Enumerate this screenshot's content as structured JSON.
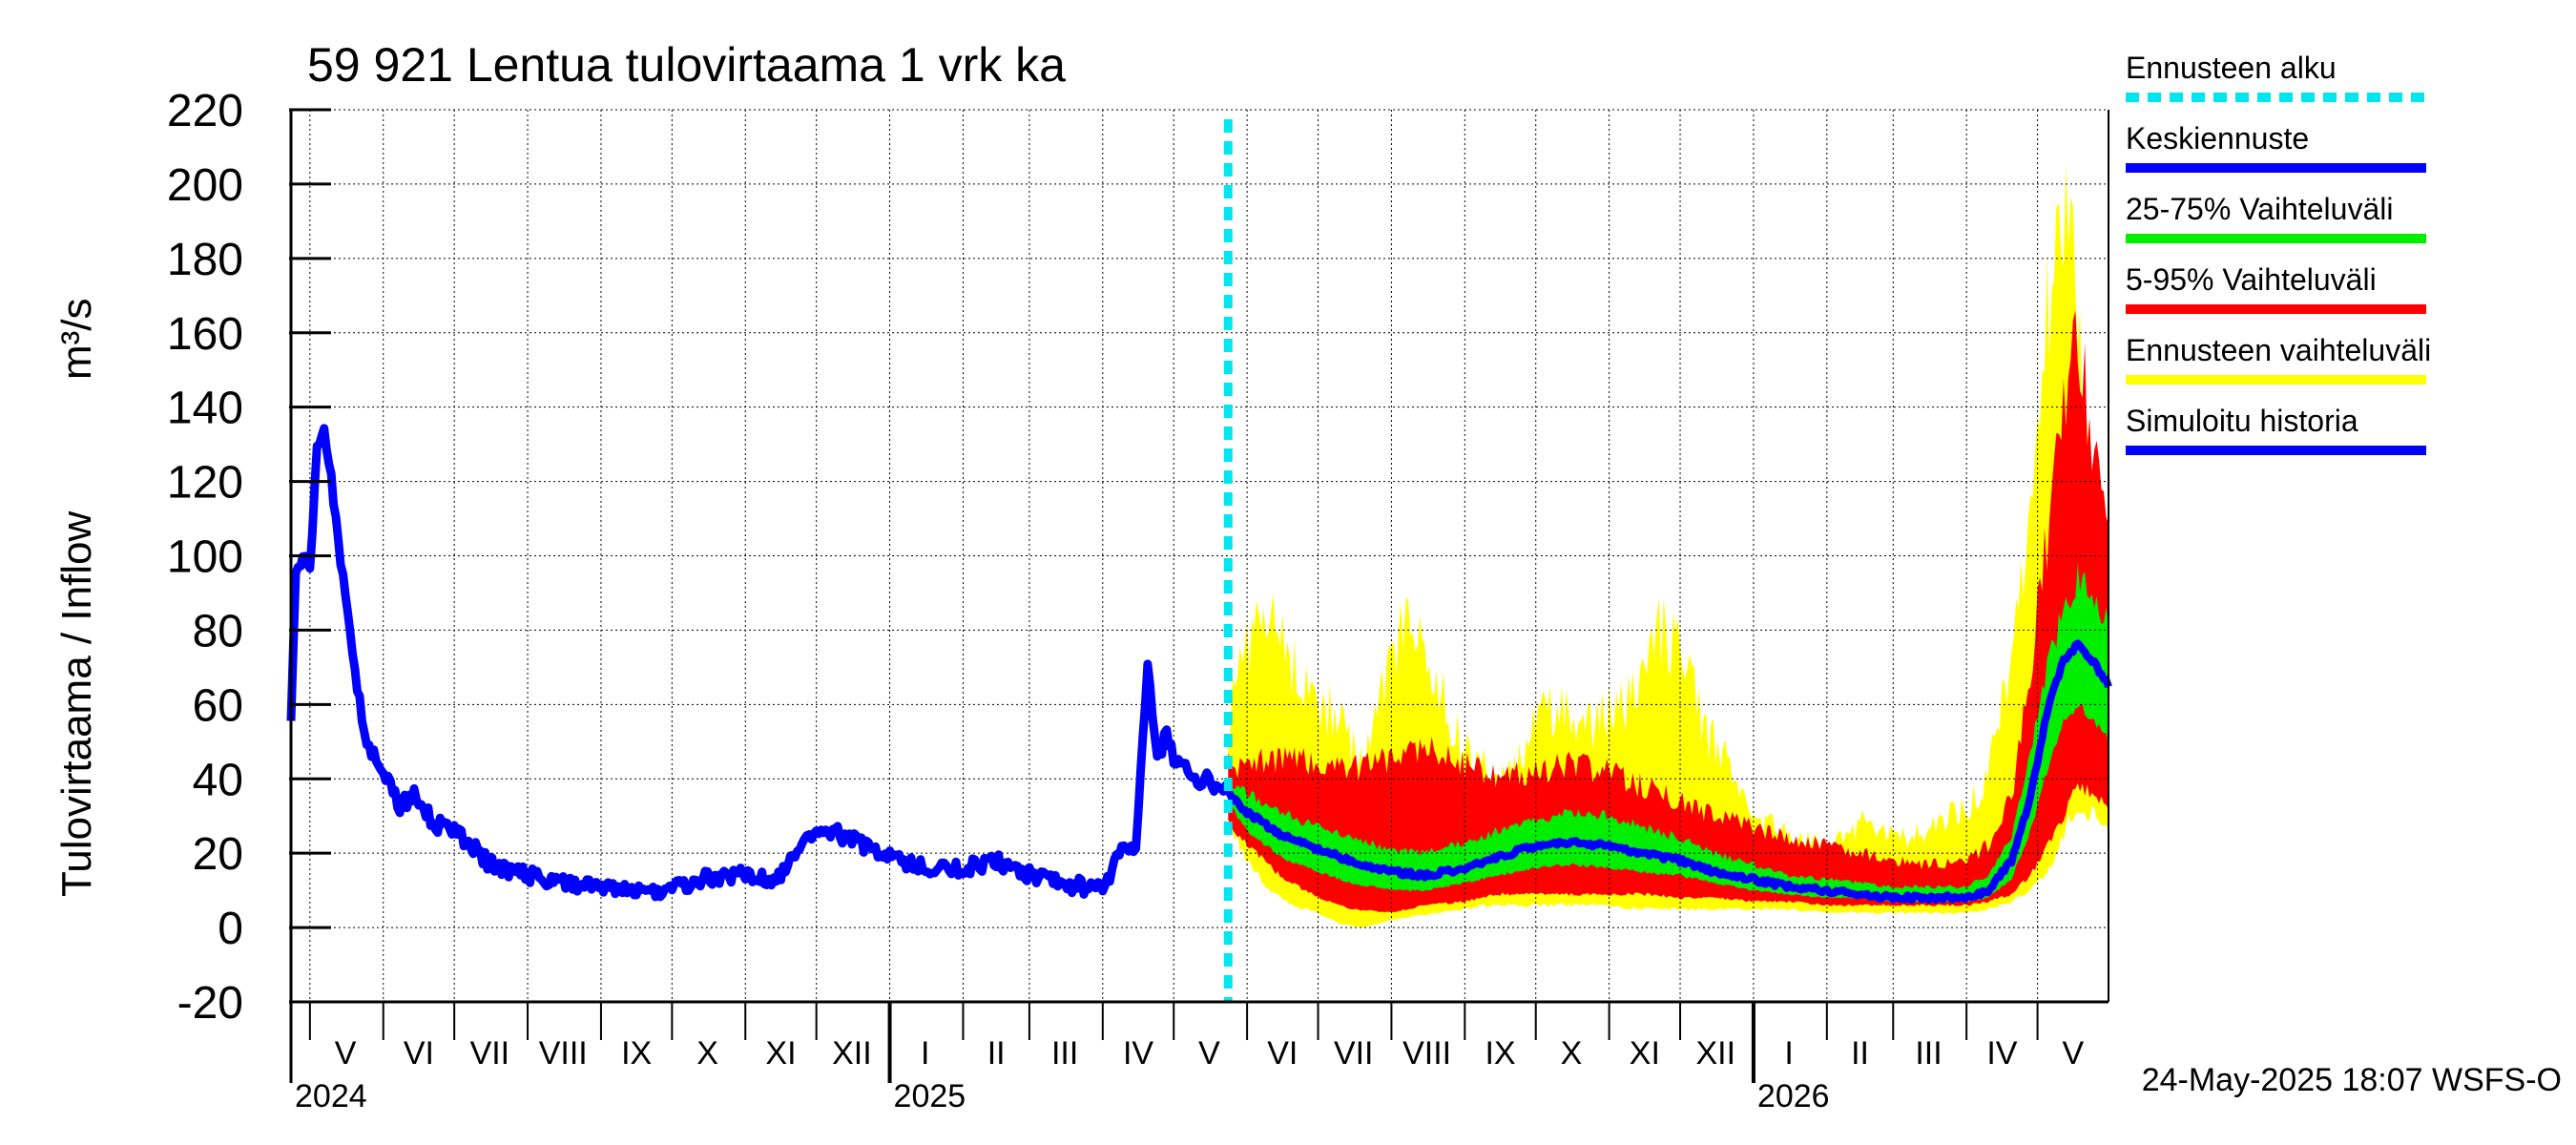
{
  "chart_data": {
    "type": "area",
    "title": "59 921 Lentua tulovirtaama 1 vrk ka",
    "ylabel": "Tulovirtaama / Inflow",
    "yunit": "m³/s",
    "ylim": [
      -20,
      220
    ],
    "yticks": [
      -20,
      0,
      20,
      40,
      60,
      80,
      100,
      120,
      140,
      160,
      180,
      200,
      220
    ],
    "grid": true,
    "x_range": [
      "2024-04-23",
      "2026-05-31"
    ],
    "forecast_start": "2025-05-24",
    "month_labels": [
      {
        "label": "V",
        "date": "2024-05-16"
      },
      {
        "label": "VI",
        "date": "2024-06-16"
      },
      {
        "label": "VII",
        "date": "2024-07-16"
      },
      {
        "label": "VIII",
        "date": "2024-08-16"
      },
      {
        "label": "IX",
        "date": "2024-09-16"
      },
      {
        "label": "X",
        "date": "2024-10-16"
      },
      {
        "label": "XI",
        "date": "2024-11-16"
      },
      {
        "label": "XII",
        "date": "2024-12-16"
      },
      {
        "label": "I",
        "date": "2025-01-16"
      },
      {
        "label": "II",
        "date": "2025-02-15"
      },
      {
        "label": "III",
        "date": "2025-03-16"
      },
      {
        "label": "IV",
        "date": "2025-04-16"
      },
      {
        "label": "V",
        "date": "2025-05-16"
      },
      {
        "label": "VI",
        "date": "2025-06-16"
      },
      {
        "label": "VII",
        "date": "2025-07-16"
      },
      {
        "label": "VIII",
        "date": "2025-08-16"
      },
      {
        "label": "IX",
        "date": "2025-09-16"
      },
      {
        "label": "X",
        "date": "2025-10-16"
      },
      {
        "label": "XI",
        "date": "2025-11-16"
      },
      {
        "label": "XII",
        "date": "2025-12-16"
      },
      {
        "label": "I",
        "date": "2026-01-16"
      },
      {
        "label": "II",
        "date": "2026-02-15"
      },
      {
        "label": "III",
        "date": "2026-03-16"
      },
      {
        "label": "IV",
        "date": "2026-04-16"
      },
      {
        "label": "V",
        "date": "2026-05-16"
      }
    ],
    "year_labels": [
      {
        "label": "2024",
        "date": "2024-04-23"
      },
      {
        "label": "2025",
        "date": "2025-01-01"
      },
      {
        "label": "2026",
        "date": "2026-01-01"
      }
    ],
    "legend": [
      {
        "label": "Ennusteen alku",
        "color": "#00e5ee",
        "style": "dashed"
      },
      {
        "label": "Keskiennuste",
        "color": "#0000ff",
        "style": "line"
      },
      {
        "label": "25-75% Vaihteluväli",
        "color": "#00ee00",
        "style": "line"
      },
      {
        "label": "5-95% Vaihteluväli",
        "color": "#ff0000",
        "style": "line"
      },
      {
        "label": "Ennusteen vaihteluväli",
        "color": "#ffff00",
        "style": "line"
      },
      {
        "label": "Simuloitu historia",
        "color": "#0000ff",
        "style": "line"
      }
    ],
    "footer": "24-May-2025 18:07 WSFS-O",
    "series": [
      {
        "name": "Simuloitu historia",
        "color": "#0000ff",
        "x": [
          "2024-04-23",
          "2024-04-25",
          "2024-04-28",
          "2024-05-01",
          "2024-05-04",
          "2024-05-07",
          "2024-05-10",
          "2024-05-13",
          "2024-05-16",
          "2024-05-20",
          "2024-05-25",
          "2024-06-01",
          "2024-06-08",
          "2024-06-15",
          "2024-06-22",
          "2024-07-01",
          "2024-07-08",
          "2024-07-16",
          "2024-07-24",
          "2024-08-01",
          "2024-08-15",
          "2024-09-01",
          "2024-09-15",
          "2024-10-01",
          "2024-10-15",
          "2024-11-01",
          "2024-11-15",
          "2024-12-01",
          "2024-12-15",
          "2025-01-01",
          "2025-01-15",
          "2025-02-01",
          "2025-02-15",
          "2025-03-01",
          "2025-03-15",
          "2025-04-01",
          "2025-04-08",
          "2025-04-15",
          "2025-04-20",
          "2025-04-24",
          "2025-04-28",
          "2025-05-01",
          "2025-05-05",
          "2025-05-10",
          "2025-05-15",
          "2025-05-20",
          "2025-05-24"
        ],
        "y": [
          57,
          95,
          100,
          96,
          130,
          136,
          120,
          105,
          88,
          68,
          50,
          42,
          33,
          36,
          28,
          26,
          22,
          17,
          15,
          14,
          12,
          11,
          9,
          11,
          13,
          14,
          13,
          27,
          24,
          19,
          16,
          16,
          18,
          14,
          12,
          10,
          20,
          22,
          70,
          45,
          52,
          46,
          43,
          40,
          40,
          38,
          36
        ]
      },
      {
        "name": "Keskiennuste",
        "color": "#0000ff",
        "x": [
          "2025-05-24",
          "2025-06-01",
          "2025-06-15",
          "2025-07-01",
          "2025-07-15",
          "2025-08-01",
          "2025-08-15",
          "2025-09-01",
          "2025-09-15",
          "2025-10-01",
          "2025-10-15",
          "2025-11-01",
          "2025-11-15",
          "2025-12-01",
          "2025-12-15",
          "2026-01-01",
          "2026-01-15",
          "2026-02-01",
          "2026-02-15",
          "2026-03-01",
          "2026-03-15",
          "2026-04-01",
          "2026-04-10",
          "2026-04-20",
          "2026-04-28",
          "2026-05-05",
          "2026-05-12",
          "2026-05-18",
          "2026-05-24",
          "2026-05-31"
        ],
        "y": [
          36,
          31,
          25,
          21,
          18,
          15,
          14,
          16,
          19,
          22,
          23,
          22,
          20,
          18,
          15,
          13,
          11,
          10,
          9,
          8,
          8,
          8,
          10,
          18,
          35,
          58,
          72,
          76,
          72,
          65
        ]
      }
    ],
    "bands": [
      {
        "name": "Ennusteen vaihteluväli",
        "color": "#ffff00",
        "x": [
          "2025-05-24",
          "2025-06-01",
          "2025-06-10",
          "2025-06-20",
          "2025-07-01",
          "2025-07-10",
          "2025-07-20",
          "2025-08-01",
          "2025-08-10",
          "2025-08-20",
          "2025-09-01",
          "2025-09-10",
          "2025-09-20",
          "2025-10-01",
          "2025-10-10",
          "2025-10-20",
          "2025-11-01",
          "2025-11-10",
          "2025-11-20",
          "2025-12-01",
          "2025-12-10",
          "2025-12-20",
          "2026-01-01",
          "2026-01-15",
          "2026-02-01",
          "2026-02-15",
          "2026-03-01",
          "2026-03-15",
          "2026-04-01",
          "2026-04-10",
          "2026-04-20",
          "2026-04-28",
          "2026-05-05",
          "2026-05-10",
          "2026-05-15",
          "2026-05-20",
          "2026-05-25",
          "2026-05-31"
        ],
        "upper": [
          55,
          78,
          85,
          72,
          62,
          55,
          45,
          75,
          86,
          65,
          48,
          42,
          40,
          55,
          60,
          52,
          58,
          62,
          80,
          75,
          55,
          45,
          30,
          25,
          22,
          28,
          24,
          26,
          32,
          40,
          75,
          110,
          170,
          200,
          190,
          140,
          90,
          40
        ],
        "lower": [
          30,
          18,
          10,
          6,
          4,
          1,
          0,
          2,
          3,
          4,
          5,
          6,
          6,
          6,
          6,
          6,
          6,
          5,
          5,
          5,
          5,
          5,
          5,
          5,
          4,
          4,
          4,
          4,
          4,
          5,
          7,
          10,
          15,
          22,
          30,
          32,
          30,
          25
        ]
      },
      {
        "name": "5-95% Vaihteluväli",
        "color": "#ff0000",
        "x": [
          "2025-05-24",
          "2025-06-01",
          "2025-06-15",
          "2025-07-01",
          "2025-07-15",
          "2025-08-01",
          "2025-08-15",
          "2025-09-01",
          "2025-09-15",
          "2025-10-01",
          "2025-10-15",
          "2025-11-01",
          "2025-11-15",
          "2025-12-01",
          "2025-12-15",
          "2026-01-01",
          "2026-01-15",
          "2026-02-01",
          "2026-02-15",
          "2026-03-01",
          "2026-03-15",
          "2026-04-01",
          "2026-04-10",
          "2026-04-20",
          "2026-04-28",
          "2026-05-05",
          "2026-05-12",
          "2026-05-18",
          "2026-05-24",
          "2026-05-31"
        ],
        "upper": [
          44,
          44,
          46,
          44,
          43,
          45,
          48,
          44,
          40,
          42,
          44,
          42,
          38,
          34,
          30,
          27,
          24,
          22,
          20,
          18,
          17,
          18,
          22,
          35,
          70,
          105,
          140,
          160,
          130,
          100
        ],
        "lower": [
          28,
          22,
          14,
          8,
          5,
          4,
          6,
          7,
          9,
          9,
          9,
          9,
          9,
          8,
          8,
          7,
          7,
          6,
          6,
          6,
          6,
          6,
          7,
          9,
          14,
          22,
          30,
          38,
          36,
          32
        ]
      },
      {
        "name": "25-75% Vaihteluväli",
        "color": "#00ee00",
        "x": [
          "2025-05-24",
          "2025-06-01",
          "2025-06-15",
          "2025-07-01",
          "2025-07-15",
          "2025-08-01",
          "2025-08-15",
          "2025-09-01",
          "2025-09-15",
          "2025-10-01",
          "2025-10-15",
          "2025-11-01",
          "2025-11-15",
          "2025-12-01",
          "2025-12-15",
          "2026-01-01",
          "2026-01-15",
          "2026-02-01",
          "2026-02-15",
          "2026-03-01",
          "2026-03-15",
          "2026-04-01",
          "2026-04-10",
          "2026-04-20",
          "2026-04-28",
          "2026-05-05",
          "2026-05-12",
          "2026-05-18",
          "2026-05-24",
          "2026-05-31"
        ],
        "upper": [
          38,
          36,
          31,
          27,
          24,
          21,
          20,
          23,
          26,
          29,
          31,
          30,
          27,
          24,
          20,
          17,
          14,
          13,
          12,
          11,
          11,
          11,
          14,
          24,
          46,
          70,
          85,
          95,
          90,
          82
        ],
        "lower": [
          33,
          26,
          19,
          15,
          12,
          10,
          10,
          12,
          14,
          16,
          17,
          16,
          15,
          14,
          12,
          10,
          9,
          8,
          8,
          7,
          7,
          7,
          8,
          13,
          26,
          42,
          55,
          60,
          56,
          50
        ]
      }
    ]
  }
}
